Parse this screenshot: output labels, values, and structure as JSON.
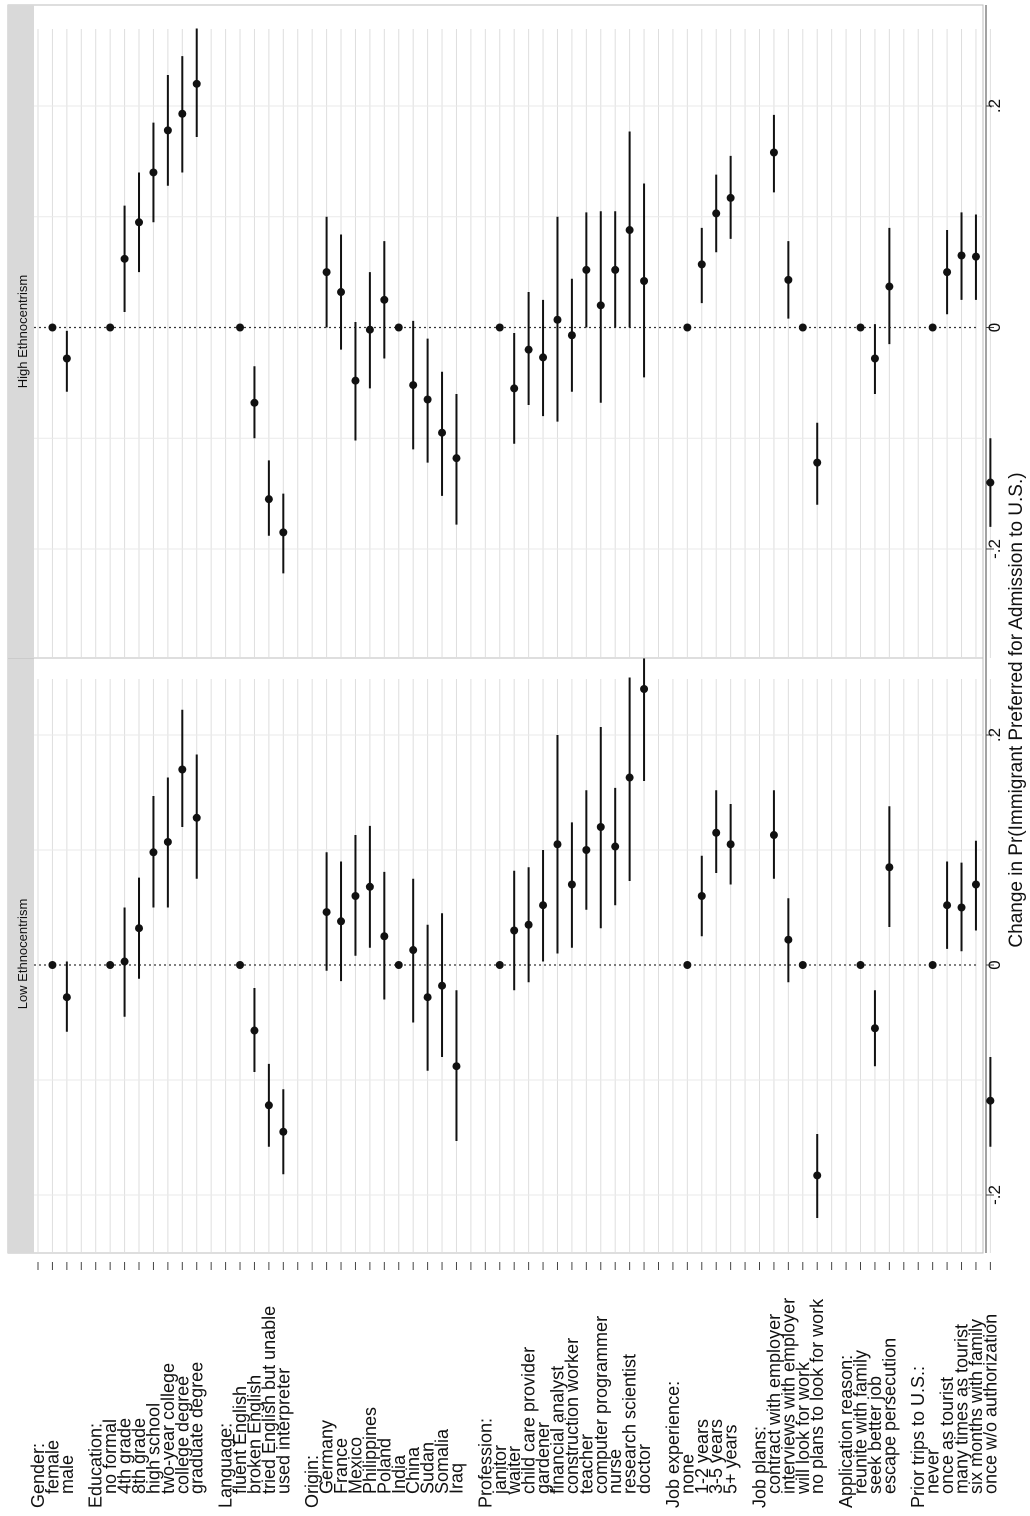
{
  "chart_data": {
    "type": "scatter",
    "orientation": "rotated-90",
    "xlabel": "Change in Pr(Immigrant Preferred for Admission to U.S.)",
    "xlim": [
      -0.3,
      0.3
    ],
    "x_ticks": [
      -0.2,
      0,
      0.2
    ],
    "x_tick_labels": [
      "-.2",
      "0",
      ".2"
    ],
    "grid": true,
    "labels": [
      {
        "text": "Gender:",
        "kind": "header"
      },
      {
        "text": "female",
        "kind": "level"
      },
      {
        "text": "male",
        "kind": "level"
      },
      {
        "text": "",
        "kind": "blank"
      },
      {
        "text": "Education:",
        "kind": "header"
      },
      {
        "text": "no formal",
        "kind": "level"
      },
      {
        "text": "4th grade",
        "kind": "level"
      },
      {
        "text": "8th grade",
        "kind": "level"
      },
      {
        "text": "high school",
        "kind": "level"
      },
      {
        "text": "two-year college",
        "kind": "level"
      },
      {
        "text": "college degree",
        "kind": "level"
      },
      {
        "text": "graduate degree",
        "kind": "level"
      },
      {
        "text": "",
        "kind": "blank"
      },
      {
        "text": "Language:",
        "kind": "header"
      },
      {
        "text": "fluent English",
        "kind": "level"
      },
      {
        "text": "broken English",
        "kind": "level"
      },
      {
        "text": "tried English but unable",
        "kind": "level"
      },
      {
        "text": "used interpreter",
        "kind": "level"
      },
      {
        "text": "",
        "kind": "blank"
      },
      {
        "text": "Origin:",
        "kind": "header"
      },
      {
        "text": "Germany",
        "kind": "level"
      },
      {
        "text": "France",
        "kind": "level"
      },
      {
        "text": "Mexico",
        "kind": "level"
      },
      {
        "text": "Philippines",
        "kind": "level"
      },
      {
        "text": "Poland",
        "kind": "level"
      },
      {
        "text": "India",
        "kind": "level"
      },
      {
        "text": "China",
        "kind": "level"
      },
      {
        "text": "Sudan",
        "kind": "level"
      },
      {
        "text": "Somalia",
        "kind": "level"
      },
      {
        "text": "Iraq",
        "kind": "level"
      },
      {
        "text": "",
        "kind": "blank"
      },
      {
        "text": "Profession:",
        "kind": "header"
      },
      {
        "text": "janitor",
        "kind": "level"
      },
      {
        "text": "waiter",
        "kind": "level"
      },
      {
        "text": "child care provider",
        "kind": "level"
      },
      {
        "text": "gardener",
        "kind": "level"
      },
      {
        "text": "financial analyst",
        "kind": "level"
      },
      {
        "text": "construction worker",
        "kind": "level"
      },
      {
        "text": "teacher",
        "kind": "level"
      },
      {
        "text": "computer programmer",
        "kind": "level"
      },
      {
        "text": "nurse",
        "kind": "level"
      },
      {
        "text": "research scientist",
        "kind": "level"
      },
      {
        "text": "doctor",
        "kind": "level"
      },
      {
        "text": "",
        "kind": "blank"
      },
      {
        "text": "Job experience:",
        "kind": "header"
      },
      {
        "text": "none",
        "kind": "level"
      },
      {
        "text": "1-2 years",
        "kind": "level"
      },
      {
        "text": "3-5 years",
        "kind": "level"
      },
      {
        "text": "5+ years",
        "kind": "level"
      },
      {
        "text": "",
        "kind": "blank"
      },
      {
        "text": "Job plans:",
        "kind": "header"
      },
      {
        "text": "contract with employer",
        "kind": "level"
      },
      {
        "text": "interviews with employer",
        "kind": "level"
      },
      {
        "text": "will look for work",
        "kind": "level"
      },
      {
        "text": "no plans to look for work",
        "kind": "level"
      },
      {
        "text": "",
        "kind": "blank"
      },
      {
        "text": "Application reason:",
        "kind": "header"
      },
      {
        "text": "reunite with family",
        "kind": "level"
      },
      {
        "text": "seek better job",
        "kind": "level"
      },
      {
        "text": "escape persecution",
        "kind": "level"
      },
      {
        "text": "",
        "kind": "blank"
      },
      {
        "text": "Prior trips to U.S.:",
        "kind": "header"
      },
      {
        "text": "never",
        "kind": "level"
      },
      {
        "text": "once as tourist",
        "kind": "level"
      },
      {
        "text": "many times as tourist",
        "kind": "level"
      },
      {
        "text": "six months with family",
        "kind": "level"
      },
      {
        "text": "once w/o authorization",
        "kind": "level"
      }
    ],
    "panels": [
      {
        "title": "Low Ethnocentrism",
        "points": [
          [
            1,
            0,
            0,
            0
          ],
          [
            2,
            -0.028,
            -0.058,
            0.003
          ],
          [
            5,
            0,
            0,
            0
          ],
          [
            6,
            0.003,
            -0.045,
            0.05
          ],
          [
            7,
            0.032,
            -0.012,
            0.076
          ],
          [
            8,
            0.098,
            0.05,
            0.147
          ],
          [
            9,
            0.107,
            0.05,
            0.163
          ],
          [
            10,
            0.17,
            0.12,
            0.222
          ],
          [
            11,
            0.128,
            0.075,
            0.183
          ],
          [
            14,
            0,
            0,
            0
          ],
          [
            15,
            -0.057,
            -0.093,
            -0.02
          ],
          [
            16,
            -0.122,
            -0.158,
            -0.086
          ],
          [
            17,
            -0.145,
            -0.182,
            -0.108
          ],
          [
            20,
            0.046,
            -0.005,
            0.098
          ],
          [
            21,
            0.038,
            -0.014,
            0.09
          ],
          [
            22,
            0.06,
            0.008,
            0.113
          ],
          [
            23,
            0.068,
            0.015,
            0.121
          ],
          [
            24,
            0.025,
            -0.03,
            0.081
          ],
          [
            25,
            0,
            0,
            0
          ],
          [
            26,
            0.013,
            -0.05,
            0.075
          ],
          [
            27,
            -0.028,
            -0.092,
            0.035
          ],
          [
            28,
            -0.018,
            -0.08,
            0.045
          ],
          [
            29,
            -0.088,
            -0.153,
            -0.022
          ],
          [
            32,
            0,
            0,
            0
          ],
          [
            33,
            0.03,
            -0.022,
            0.082
          ],
          [
            34,
            0.035,
            -0.015,
            0.085
          ],
          [
            35,
            0.052,
            0.003,
            0.1
          ],
          [
            36,
            0.105,
            0.01,
            0.2
          ],
          [
            37,
            0.07,
            0.015,
            0.124
          ],
          [
            38,
            0.1,
            0.048,
            0.152
          ],
          [
            39,
            0.12,
            0.032,
            0.207
          ],
          [
            40,
            0.103,
            0.052,
            0.154
          ],
          [
            41,
            0.163,
            0.073,
            0.25
          ],
          [
            42,
            0.24,
            0.16,
            0.32
          ],
          [
            45,
            0,
            0,
            0
          ],
          [
            46,
            0.06,
            0.025,
            0.095
          ],
          [
            47,
            0.115,
            0.08,
            0.152
          ],
          [
            48,
            0.105,
            0.07,
            0.14
          ],
          [
            51,
            0.113,
            0.075,
            0.152
          ],
          [
            52,
            0.022,
            -0.015,
            0.058
          ],
          [
            53,
            0,
            0,
            0
          ],
          [
            54,
            -0.183,
            -0.22,
            -0.147
          ],
          [
            57,
            0,
            0,
            0
          ],
          [
            58,
            -0.055,
            -0.088,
            -0.022
          ],
          [
            59,
            0.085,
            0.033,
            0.138
          ],
          [
            62,
            0,
            0,
            0
          ],
          [
            63,
            0.052,
            0.014,
            0.09
          ],
          [
            64,
            0.05,
            0.012,
            0.089
          ],
          [
            65,
            0.07,
            0.03,
            0.108
          ],
          [
            66,
            -0.118,
            -0.158,
            -0.08
          ]
        ]
      },
      {
        "title": "High Ethnocentrism",
        "points": [
          [
            1,
            0,
            0,
            0
          ],
          [
            2,
            -0.028,
            -0.058,
            -0.003
          ],
          [
            5,
            0,
            0,
            0
          ],
          [
            6,
            0.062,
            0.014,
            0.11
          ],
          [
            7,
            0.095,
            0.05,
            0.14
          ],
          [
            8,
            0.14,
            0.095,
            0.185
          ],
          [
            9,
            0.178,
            0.128,
            0.228
          ],
          [
            10,
            0.193,
            0.14,
            0.245
          ],
          [
            11,
            0.22,
            0.172,
            0.27
          ],
          [
            14,
            0,
            0,
            0
          ],
          [
            15,
            -0.068,
            -0.1,
            -0.035
          ],
          [
            16,
            -0.155,
            -0.188,
            -0.12
          ],
          [
            17,
            -0.185,
            -0.222,
            -0.15
          ],
          [
            20,
            0.05,
            0.0,
            0.1
          ],
          [
            21,
            0.032,
            -0.02,
            0.084
          ],
          [
            22,
            -0.048,
            -0.102,
            0.005
          ],
          [
            23,
            -0.002,
            -0.055,
            0.05
          ],
          [
            24,
            0.025,
            -0.028,
            0.078
          ],
          [
            25,
            0,
            0,
            0
          ],
          [
            26,
            -0.052,
            -0.11,
            0.006
          ],
          [
            27,
            -0.065,
            -0.122,
            -0.01
          ],
          [
            28,
            -0.095,
            -0.152,
            -0.04
          ],
          [
            29,
            -0.118,
            -0.178,
            -0.06
          ],
          [
            32,
            0,
            0,
            0
          ],
          [
            33,
            -0.055,
            -0.105,
            -0.005
          ],
          [
            34,
            -0.02,
            -0.07,
            0.032
          ],
          [
            35,
            -0.027,
            -0.08,
            0.025
          ],
          [
            36,
            0.007,
            -0.085,
            0.1
          ],
          [
            37,
            -0.007,
            -0.058,
            0.044
          ],
          [
            38,
            0.052,
            0.0,
            0.104
          ],
          [
            39,
            0.02,
            -0.068,
            0.105
          ],
          [
            40,
            0.052,
            0.0,
            0.105
          ],
          [
            41,
            0.088,
            0.0,
            0.177
          ],
          [
            42,
            0.042,
            -0.045,
            0.13
          ],
          [
            45,
            0,
            0,
            0
          ],
          [
            46,
            0.057,
            0.022,
            0.09
          ],
          [
            47,
            0.103,
            0.068,
            0.138
          ],
          [
            48,
            0.117,
            0.08,
            0.155
          ],
          [
            51,
            0.158,
            0.122,
            0.192
          ],
          [
            52,
            0.043,
            0.008,
            0.078
          ],
          [
            53,
            0,
            0,
            0
          ],
          [
            54,
            -0.122,
            -0.16,
            -0.086
          ],
          [
            57,
            0,
            0,
            0
          ],
          [
            58,
            -0.028,
            -0.06,
            0.003
          ],
          [
            59,
            0.037,
            -0.015,
            0.09
          ],
          [
            62,
            0,
            0,
            0
          ],
          [
            63,
            0.05,
            0.012,
            0.088
          ],
          [
            64,
            0.065,
            0.025,
            0.104
          ],
          [
            65,
            0.064,
            0.025,
            0.102
          ],
          [
            66,
            -0.14,
            -0.18,
            -0.1
          ]
        ]
      }
    ]
  }
}
